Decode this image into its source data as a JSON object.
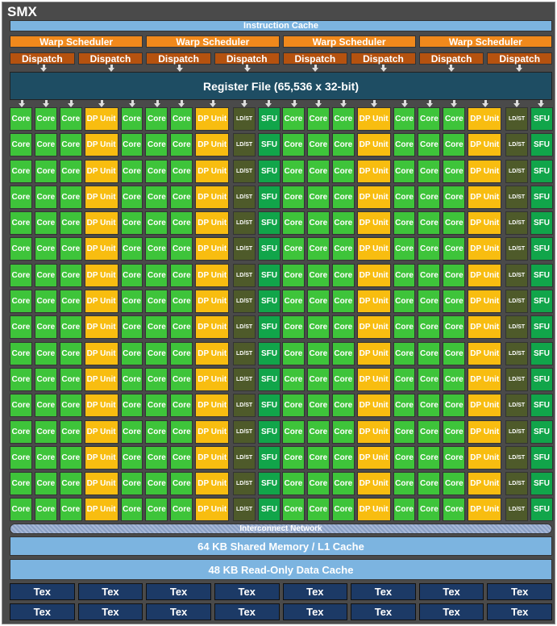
{
  "title": "SMX",
  "instruction_cache": "Instruction Cache",
  "warp_schedulers": [
    "Warp Scheduler",
    "Warp Scheduler",
    "Warp Scheduler",
    "Warp Scheduler"
  ],
  "dispatch_units": [
    "Dispatch",
    "Dispatch",
    "Dispatch",
    "Dispatch",
    "Dispatch",
    "Dispatch",
    "Dispatch",
    "Dispatch"
  ],
  "register_file": "Register File (65,536 x 32-bit)",
  "unit_labels": {
    "core": "Core",
    "dp": "DP Unit",
    "ldst": "LD/ST",
    "sfu": "SFU"
  },
  "row_pattern": [
    "core",
    "core",
    "core",
    "dp",
    "core",
    "core",
    "core",
    "dp",
    "ldst",
    "sfu",
    "core",
    "core",
    "core",
    "dp",
    "core",
    "core",
    "core",
    "dp",
    "ldst",
    "sfu"
  ],
  "row_count": 16,
  "interconnect": "Interconnect Network",
  "shared_memory": "64 KB Shared Memory / L1 Cache",
  "readonly_cache": "48 KB Read-Only Data Cache",
  "tex_rows": [
    [
      "Tex",
      "Tex",
      "Tex",
      "Tex",
      "Tex",
      "Tex",
      "Tex",
      "Tex"
    ],
    [
      "Tex",
      "Tex",
      "Tex",
      "Tex",
      "Tex",
      "Tex",
      "Tex",
      "Tex"
    ]
  ]
}
